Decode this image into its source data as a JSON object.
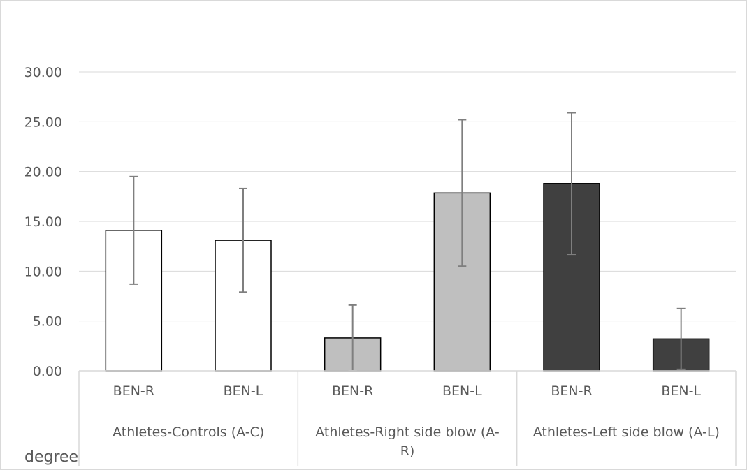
{
  "chart_data": {
    "type": "bar",
    "title": "",
    "ylabel": "degree",
    "ylim": [
      0,
      30
    ],
    "yticks": [
      "0.00",
      "5.00",
      "10.00",
      "15.00",
      "20.00",
      "25.00",
      "30.00"
    ],
    "grid": true,
    "groups": [
      {
        "label": "Athletes-Controls (A-C)",
        "fill": "#ffffff",
        "bars": [
          {
            "category": "BEN-R",
            "value": 14.1,
            "error": 5.4
          },
          {
            "category": "BEN-L",
            "value": 13.1,
            "error": 5.2
          }
        ]
      },
      {
        "label": "Athletes-Right side blow (A-R)",
        "fill": "#bfbfbf",
        "bars": [
          {
            "category": "BEN-R",
            "value": 3.3,
            "error": 3.3
          },
          {
            "category": "BEN-L",
            "value": 17.85,
            "error": 7.35
          }
        ]
      },
      {
        "label": "Athletes-Left side blow (A-L)",
        "fill": "#404040",
        "bars": [
          {
            "category": "BEN-R",
            "value": 18.8,
            "error": 7.1
          },
          {
            "category": "BEN-L",
            "value": 3.2,
            "error": 3.05
          }
        ]
      }
    ],
    "group_label_lines": [
      [
        "Athletes-Controls (A-C)"
      ],
      [
        "Athletes-Right side blow (A-",
        "R)"
      ],
      [
        "Athletes-Left side blow (A-L)"
      ]
    ],
    "colors": {
      "grid": "#d9d9d9",
      "bar_edge": "#000000",
      "error_bar": "#7f7f7f",
      "text": "#595959"
    }
  }
}
